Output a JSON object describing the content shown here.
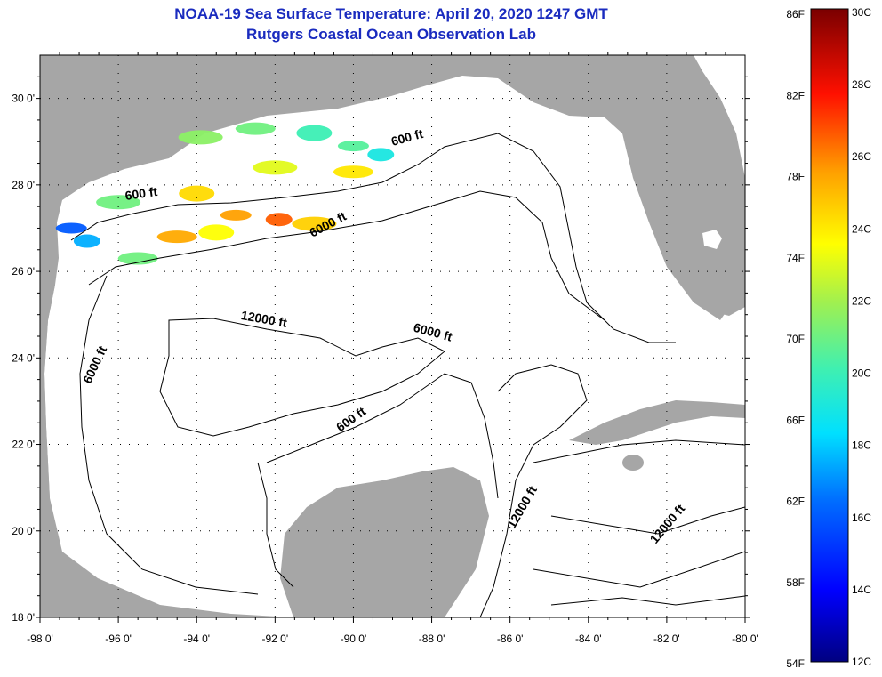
{
  "title": {
    "line1": "NOAA-19 Sea Surface Temperature:  April 20, 2020 1247 GMT",
    "line2": "Rutgers Coastal Ocean Observation Lab"
  },
  "colors": {
    "title": "#1a2bbf",
    "land": "#a6a6a6",
    "ocean": "#ffffff",
    "contour": "#000000"
  },
  "map": {
    "lon_range": [
      -98,
      -80
    ],
    "lat_range": [
      18,
      31
    ],
    "lon_ticks": [
      "-98 0'",
      "-96 0'",
      "-94 0'",
      "-92 0'",
      "-90 0'",
      "-88 0'",
      "-86 0'",
      "-84 0'",
      "-82 0'",
      "-80 0'"
    ],
    "lat_ticks": [
      "18 0'",
      "20 0'",
      "22 0'",
      "24 0'",
      "26 0'",
      "28 0'",
      "30 0'"
    ],
    "grid": "dotted",
    "contour_labels": [
      {
        "text": "600 ft",
        "lon": -88.6,
        "lat": 29.0,
        "rot": -15
      },
      {
        "text": "600 ft",
        "lon": -95.4,
        "lat": 27.7,
        "rot": -8
      },
      {
        "text": "6000 ft",
        "lon": -90.6,
        "lat": 27.0,
        "rot": -28
      },
      {
        "text": "12000 ft",
        "lon": -92.3,
        "lat": 24.8,
        "rot": 10
      },
      {
        "text": "6000 ft",
        "lon": -88.0,
        "lat": 24.5,
        "rot": 15
      },
      {
        "text": "6000 ft",
        "lon": -96.5,
        "lat": 23.8,
        "rot": -65
      },
      {
        "text": "600 ft",
        "lon": -90.0,
        "lat": 22.5,
        "rot": -35
      },
      {
        "text": "12000 ft",
        "lon": -85.6,
        "lat": 20.5,
        "rot": -60
      },
      {
        "text": "12000 ft",
        "lon": -81.9,
        "lat": 20.1,
        "rot": -50
      }
    ]
  },
  "colorbar": {
    "f_labels": [
      "86F",
      "82F",
      "78F",
      "74F",
      "70F",
      "66F",
      "62F",
      "58F",
      "54F"
    ],
    "c_labels": [
      "30C",
      "28C",
      "26C",
      "24C",
      "22C",
      "20C",
      "18C",
      "16C",
      "14C",
      "12C"
    ],
    "c_range": [
      12,
      30
    ]
  },
  "sst_patches": [
    {
      "lon": -93.9,
      "lat": 29.1,
      "temp": 21.5
    },
    {
      "lon": -92.5,
      "lat": 29.3,
      "temp": 21.0
    },
    {
      "lon": -91.0,
      "lat": 29.2,
      "temp": 20.0
    },
    {
      "lon": -90.0,
      "lat": 28.9,
      "temp": 20.5
    },
    {
      "lon": -89.3,
      "lat": 28.7,
      "temp": 19.0
    },
    {
      "lon": -92.0,
      "lat": 28.4,
      "temp": 23.0
    },
    {
      "lon": -90.0,
      "lat": 28.3,
      "temp": 24.0
    },
    {
      "lon": -94.0,
      "lat": 27.8,
      "temp": 24.3
    },
    {
      "lon": -93.0,
      "lat": 27.3,
      "temp": 25.5
    },
    {
      "lon": -91.9,
      "lat": 27.2,
      "temp": 26.5
    },
    {
      "lon": -91.0,
      "lat": 27.1,
      "temp": 24.5
    },
    {
      "lon": -94.5,
      "lat": 26.8,
      "temp": 25.3
    },
    {
      "lon": -93.5,
      "lat": 26.9,
      "temp": 23.5
    },
    {
      "lon": -97.2,
      "lat": 27.0,
      "temp": 16.0
    },
    {
      "lon": -96.8,
      "lat": 26.7,
      "temp": 17.5
    },
    {
      "lon": -96.0,
      "lat": 27.6,
      "temp": 21.0
    },
    {
      "lon": -95.5,
      "lat": 26.3,
      "temp": 21.0
    }
  ]
}
